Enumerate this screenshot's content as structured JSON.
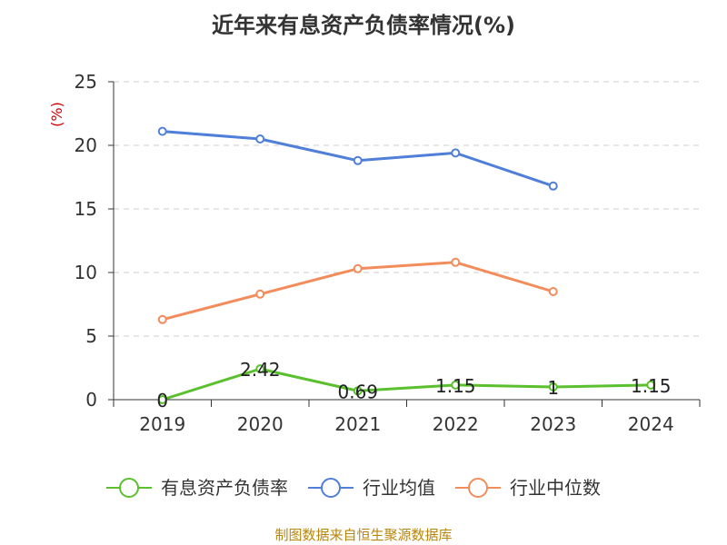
{
  "chart_data": {
    "type": "line",
    "title": "近年来有息资产负债率情况(%)",
    "ylabel": "(%)",
    "xlabel": "",
    "categories": [
      "2019",
      "2020",
      "2021",
      "2022",
      "2023",
      "2024"
    ],
    "ylim": [
      0,
      25
    ],
    "yticks": [
      0,
      5,
      10,
      15,
      20,
      25
    ],
    "grid": true,
    "legend_position": "bottom",
    "series": [
      {
        "name": "有息资产负债率",
        "color": "#5ac02e",
        "values": [
          0,
          2.42,
          0.69,
          1.15,
          1,
          1.15
        ],
        "data_labels": [
          "0",
          "2.42",
          "0.69",
          "1.15",
          "1",
          "1.15"
        ]
      },
      {
        "name": "行业均值",
        "color": "#4f7fd9",
        "values": [
          21.1,
          20.5,
          18.8,
          19.4,
          16.8,
          null
        ]
      },
      {
        "name": "行业中位数",
        "color": "#f28c5b",
        "values": [
          6.3,
          8.3,
          10.3,
          10.8,
          8.5,
          null
        ]
      }
    ]
  },
  "ylabel_color": "#cc0000",
  "source": {
    "text": "制图数据来自恒生聚源数据库",
    "color": "#b8860b"
  }
}
